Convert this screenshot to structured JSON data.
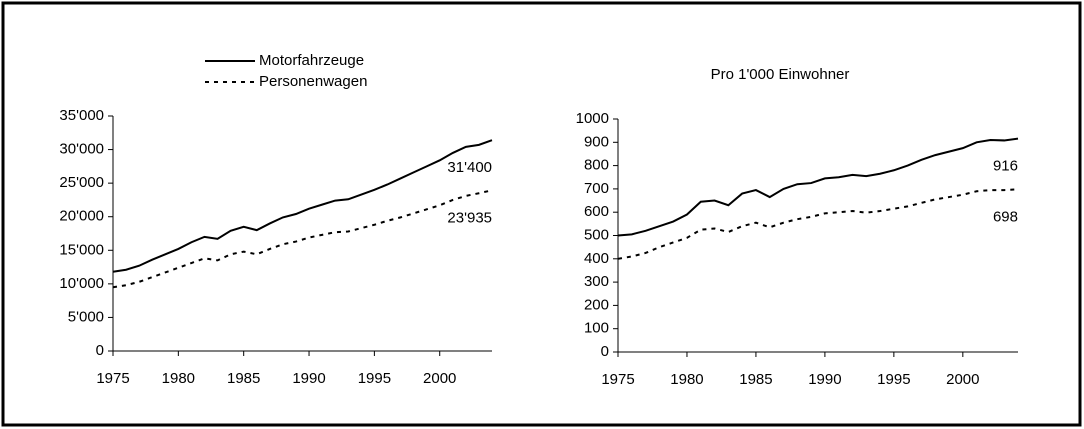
{
  "chart_data": [
    {
      "type": "line",
      "x": [
        1975,
        1976,
        1977,
        1978,
        1979,
        1980,
        1981,
        1982,
        1983,
        1984,
        1985,
        1986,
        1987,
        1988,
        1989,
        1990,
        1991,
        1992,
        1993,
        1994,
        1995,
        1996,
        1997,
        1998,
        1999,
        2000,
        2001,
        2002,
        2003,
        2004
      ],
      "series": [
        {
          "name": "Motorfahrzeuge",
          "color": "#000000",
          "style": "solid",
          "end_label": "31'400",
          "values": [
            11800,
            12100,
            12700,
            13600,
            14400,
            15200,
            16200,
            17000,
            16700,
            17900,
            18500,
            18000,
            19000,
            19900,
            20400,
            21200,
            21800,
            22400,
            22600,
            23300,
            24000,
            24800,
            25700,
            26600,
            27500,
            28400,
            29500,
            30400,
            30700,
            31400
          ]
        },
        {
          "name": "Personenwagen",
          "color": "#000000",
          "style": "dashed",
          "end_label": "23'935",
          "values": [
            9500,
            9800,
            10300,
            11000,
            11700,
            12400,
            13100,
            13800,
            13500,
            14400,
            14800,
            14400,
            15200,
            15900,
            16300,
            16900,
            17300,
            17700,
            17800,
            18300,
            18800,
            19400,
            19900,
            20500,
            21100,
            21700,
            22500,
            23100,
            23500,
            23935
          ]
        }
      ],
      "xlim": [
        1975,
        2004
      ],
      "xticks": [
        1975,
        1980,
        1985,
        1990,
        1995,
        2000
      ],
      "ylim": [
        0,
        35000
      ],
      "yticks": [
        0,
        {
          "value": 5000,
          "label": "5'000"
        },
        {
          "value": 10000,
          "label": "10'000"
        },
        {
          "value": 15000,
          "label": "15'000"
        },
        {
          "value": 20000,
          "label": "20'000"
        },
        {
          "value": 25000,
          "label": "25'000"
        },
        {
          "value": 30000,
          "label": "30'000"
        },
        {
          "value": 35000,
          "label": "35'000"
        }
      ],
      "legend": "top"
    },
    {
      "type": "line",
      "title": "Pro 1'000 Einwohner",
      "x": [
        1975,
        1976,
        1977,
        1978,
        1979,
        1980,
        1981,
        1982,
        1983,
        1984,
        1985,
        1986,
        1987,
        1988,
        1989,
        1990,
        1991,
        1992,
        1993,
        1994,
        1995,
        1996,
        1997,
        1998,
        1999,
        2000,
        2001,
        2002,
        2003,
        2004
      ],
      "series": [
        {
          "color": "#000000",
          "style": "solid",
          "end_label": "916",
          "values": [
            500,
            505,
            520,
            540,
            560,
            590,
            645,
            650,
            630,
            680,
            695,
            665,
            700,
            720,
            725,
            745,
            750,
            760,
            755,
            765,
            780,
            800,
            825,
            845,
            860,
            875,
            900,
            910,
            908,
            916
          ]
        },
        {
          "color": "#000000",
          "style": "dashed",
          "end_label": "698",
          "values": [
            400,
            410,
            425,
            450,
            470,
            490,
            525,
            530,
            515,
            540,
            555,
            535,
            555,
            570,
            580,
            595,
            600,
            605,
            598,
            605,
            615,
            625,
            640,
            655,
            665,
            675,
            690,
            695,
            695,
            698
          ]
        }
      ],
      "xlim": [
        1975,
        2004
      ],
      "xticks": [
        1975,
        1980,
        1985,
        1990,
        1995,
        2000
      ],
      "ylim": [
        0,
        1000
      ],
      "yticks": [
        0,
        100,
        200,
        300,
        400,
        500,
        600,
        700,
        800,
        900,
        1000
      ]
    }
  ]
}
